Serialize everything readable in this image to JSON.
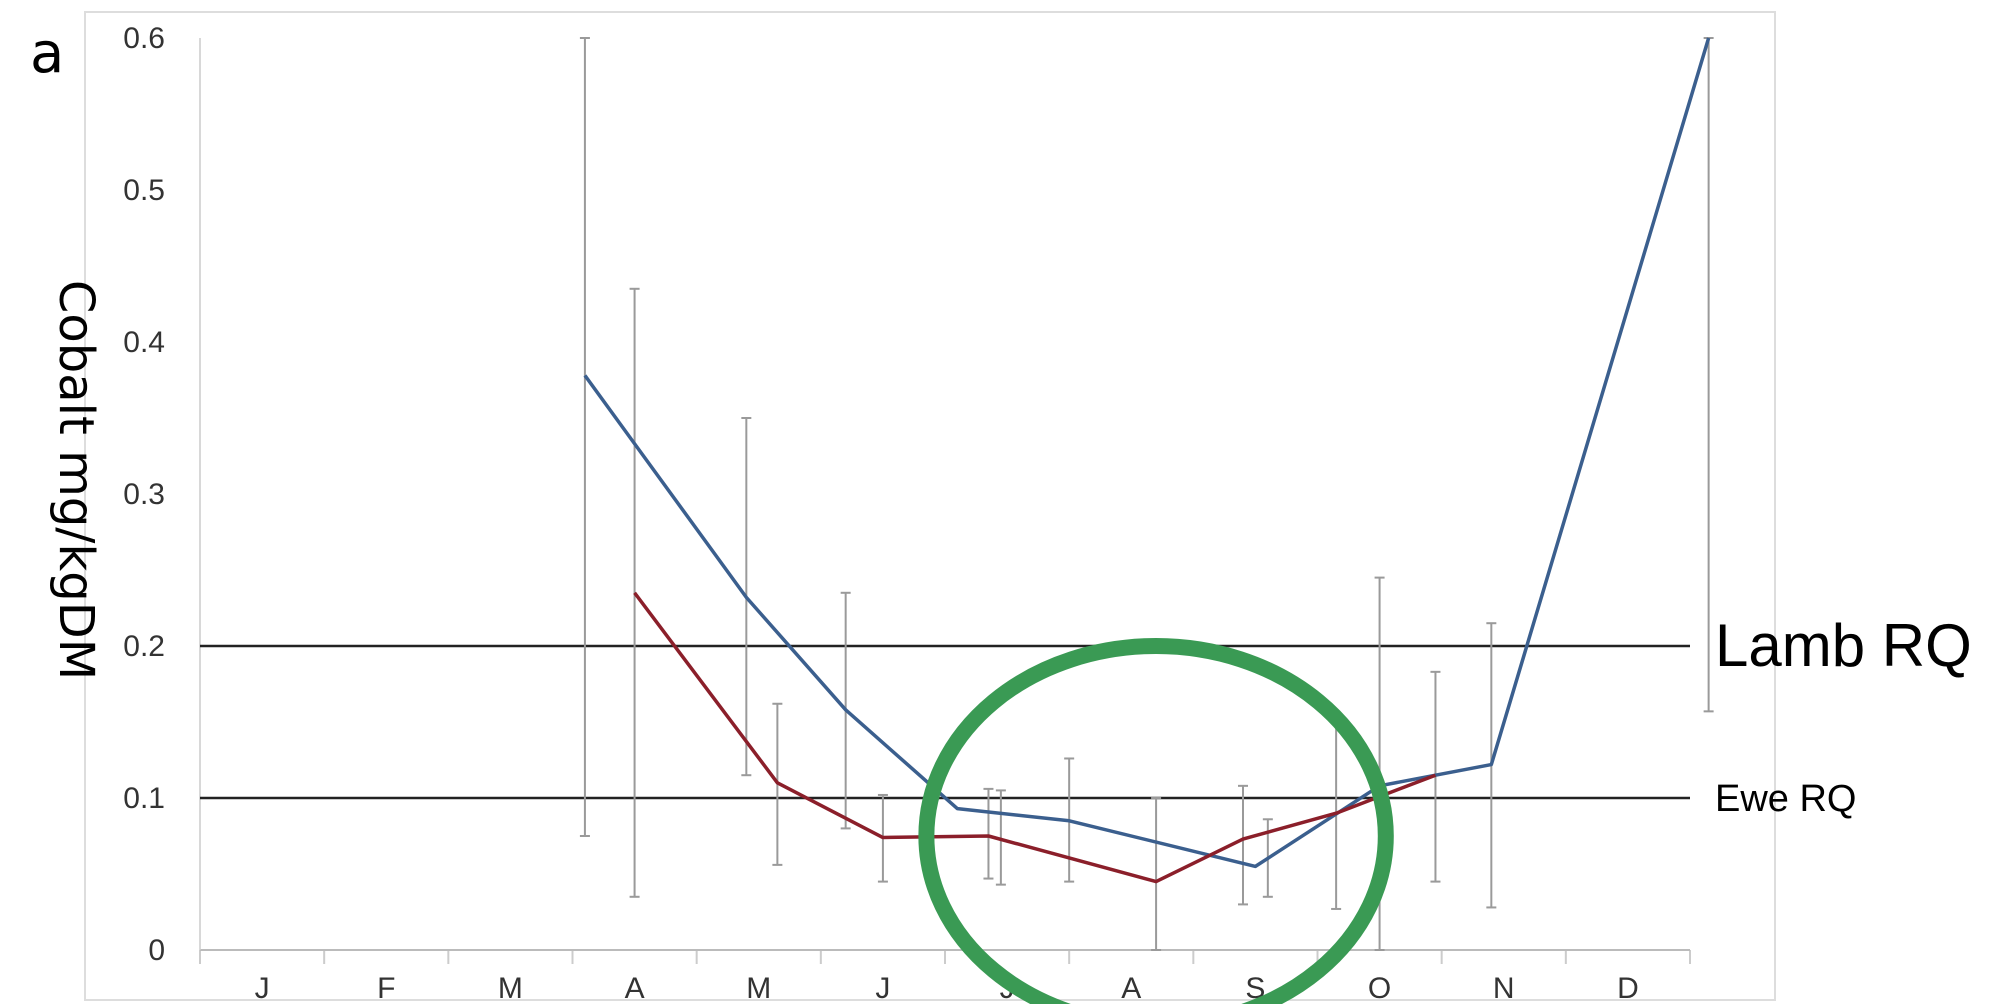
{
  "chart_data": {
    "type": "line",
    "panel_label": "a",
    "ylabel": "Cobalt mg/kgDM",
    "ylim": [
      0,
      0.6
    ],
    "yticks": [
      "0",
      "0.1",
      "0.2",
      "0.3",
      "0.4",
      "0.5",
      "0.6"
    ],
    "categories": [
      "J",
      "F",
      "M",
      "A",
      "M",
      "J",
      "J",
      "A",
      "S",
      "O",
      "N",
      "D"
    ],
    "series": [
      {
        "color": "#3b5f8e",
        "points": [
          {
            "x": 3.1,
            "y": 0.378,
            "err_low": 0.075,
            "err_high": 0.6
          },
          {
            "x": 4.4,
            "y": 0.232,
            "err_low": 0.115,
            "err_high": 0.35
          },
          {
            "x": 5.2,
            "y": 0.158,
            "err_low": 0.08,
            "err_high": 0.235
          },
          {
            "x": 6.1,
            "y": 0.093
          },
          {
            "x": 7.0,
            "y": 0.085,
            "err_low": 0.045,
            "err_high": 0.126
          },
          {
            "x": 8.5,
            "y": 0.055
          },
          {
            "x": 9.5,
            "y": 0.108,
            "err_low": 0.0,
            "err_high": 0.245
          },
          {
            "x": 10.4,
            "y": 0.122,
            "err_low": 0.028,
            "err_high": 0.215
          },
          {
            "x": 12.15,
            "y": 0.6,
            "err_low": 0.157,
            "err_high": 0.6
          }
        ]
      },
      {
        "color": "#8b1f2a",
        "points": [
          {
            "x": 3.5,
            "y": 0.235,
            "err_low": 0.035,
            "err_high": 0.435
          },
          {
            "x": 4.65,
            "y": 0.11,
            "err_low": 0.056,
            "err_high": 0.162
          },
          {
            "x": 5.5,
            "y": 0.074,
            "err_low": 0.045,
            "err_high": 0.102
          },
          {
            "x": 6.35,
            "y": 0.075,
            "err_low": 0.047,
            "err_high": 0.106
          },
          {
            "x": 7.7,
            "y": 0.045,
            "err_low": 0.0,
            "err_high": 0.1
          },
          {
            "x": 8.4,
            "y": 0.073,
            "err_low": 0.03,
            "err_high": 0.108
          },
          {
            "x": 9.15,
            "y": 0.09,
            "err_low": 0.027,
            "err_high": 0.153
          },
          {
            "x": 9.95,
            "y": 0.115,
            "err_low": 0.045,
            "err_high": 0.183
          }
        ]
      }
    ],
    "extra_error_bars": [
      {
        "x": 6.45,
        "err_low": 0.043,
        "err_high": 0.105
      },
      {
        "x": 8.6,
        "err_low": 0.035,
        "err_high": 0.086
      }
    ],
    "reference_lines": [
      {
        "label": "Lamb RQ",
        "y": 0.2
      },
      {
        "label": "Ewe RQ",
        "y": 0.1
      }
    ],
    "annotation": {
      "shape": "ellipse",
      "color": "#3a9a54",
      "center_x": 7.7,
      "center_y": 0.075,
      "x_half_width": 1.85,
      "y_half_height": 0.125
    },
    "grid": false,
    "legend": "none"
  }
}
